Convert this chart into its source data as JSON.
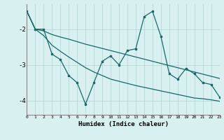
{
  "xlabel": "Humidex (Indice chaleur)",
  "bg_color": "#d8f0f0",
  "grid_color": "#b8d8d8",
  "line_color": "#1a6868",
  "x_data": [
    0,
    1,
    2,
    3,
    4,
    5,
    6,
    7,
    8,
    9,
    10,
    11,
    12,
    13,
    14,
    15,
    16,
    17,
    18,
    19,
    20,
    21,
    22,
    23
  ],
  "y_main": [
    -1.5,
    -2.0,
    -2.0,
    -2.7,
    -2.85,
    -3.3,
    -3.5,
    -4.1,
    -3.5,
    -2.9,
    -2.75,
    -3.0,
    -2.6,
    -2.55,
    -1.65,
    -1.5,
    -2.2,
    -3.25,
    -3.4,
    -3.1,
    -3.25,
    -3.5,
    -3.55,
    -3.9
  ],
  "y_upper": [
    -1.5,
    -2.0,
    -2.05,
    -2.15,
    -2.22,
    -2.28,
    -2.35,
    -2.42,
    -2.48,
    -2.54,
    -2.6,
    -2.66,
    -2.72,
    -2.78,
    -2.84,
    -2.9,
    -2.96,
    -3.02,
    -3.08,
    -3.14,
    -3.2,
    -3.26,
    -3.32,
    -3.38
  ],
  "y_lower": [
    -1.5,
    -2.0,
    -2.18,
    -2.45,
    -2.62,
    -2.78,
    -2.93,
    -3.08,
    -3.2,
    -3.3,
    -3.4,
    -3.46,
    -3.52,
    -3.58,
    -3.63,
    -3.68,
    -3.73,
    -3.78,
    -3.83,
    -3.88,
    -3.93,
    -3.95,
    -3.98,
    -4.02
  ],
  "xlim": [
    0,
    23
  ],
  "ylim": [
    -4.4,
    -1.3
  ],
  "yticks": [
    -4,
    -3,
    -2
  ],
  "xticks": [
    0,
    1,
    2,
    3,
    4,
    5,
    6,
    7,
    8,
    9,
    10,
    11,
    12,
    13,
    14,
    15,
    16,
    17,
    18,
    19,
    20,
    21,
    22,
    23
  ]
}
